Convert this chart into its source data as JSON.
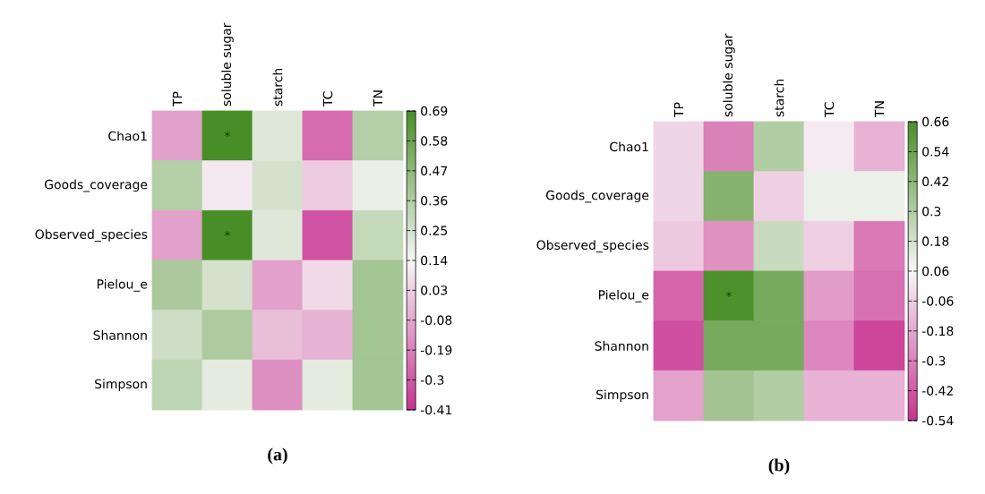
{
  "chart_data": [
    {
      "type": "heatmap",
      "title": "(a)",
      "categories": [
        "TP",
        "soluble sugar",
        "starch",
        "TC",
        "TN"
      ],
      "y_categories": [
        "Chao1",
        "Goods_coverage",
        "Observed_species",
        "Pielou_e",
        "Shannon",
        "Simpson"
      ],
      "cells": [
        [
          -0.1,
          0.69,
          0.22,
          -0.25,
          0.35
        ],
        [
          0.35,
          0.1,
          0.25,
          0.02,
          0.18
        ],
        [
          -0.1,
          0.69,
          0.22,
          -0.32,
          0.3
        ],
        [
          0.38,
          0.25,
          -0.1,
          0.06,
          0.4
        ],
        [
          0.27,
          0.37,
          -0.02,
          -0.05,
          0.4
        ],
        [
          0.32,
          0.2,
          -0.15,
          0.2,
          0.4
        ]
      ],
      "cell_labels": [
        [
          null,
          "*",
          null,
          null,
          null
        ],
        [
          null,
          null,
          null,
          null,
          null
        ],
        [
          null,
          "*",
          null,
          null,
          null
        ],
        [
          null,
          null,
          null,
          null,
          null
        ],
        [
          null,
          null,
          null,
          null,
          null
        ],
        [
          null,
          null,
          null,
          null,
          null
        ]
      ],
      "clim": [
        -0.41,
        0.69
      ],
      "cticks": [
        -0.41,
        -0.3,
        -0.19,
        -0.08,
        0.03,
        0.14,
        0.25,
        0.36,
        0.47,
        0.58,
        0.69
      ]
    },
    {
      "type": "heatmap",
      "title": "(b)",
      "categories": [
        "TP",
        "soluble sugar",
        "starch",
        "TC",
        "TN"
      ],
      "y_categories": [
        "Chao1",
        "Goods_coverage",
        "Observed_species",
        "Pielou_e",
        "Shannon",
        "Simpson"
      ],
      "cells": [
        [
          -0.04,
          -0.3,
          0.3,
          0.02,
          -0.15
        ],
        [
          -0.04,
          0.45,
          -0.06,
          0.1,
          0.1
        ],
        [
          -0.08,
          -0.25,
          0.22,
          -0.06,
          -0.32
        ],
        [
          -0.38,
          0.64,
          0.5,
          -0.22,
          -0.35
        ],
        [
          -0.45,
          0.5,
          0.5,
          -0.28,
          -0.48
        ],
        [
          -0.2,
          0.35,
          0.3,
          -0.15,
          -0.15
        ]
      ],
      "cell_labels": [
        [
          null,
          null,
          null,
          null,
          null
        ],
        [
          null,
          null,
          null,
          null,
          null
        ],
        [
          null,
          null,
          null,
          null,
          null
        ],
        [
          null,
          "*",
          null,
          null,
          null
        ],
        [
          null,
          null,
          null,
          null,
          null
        ],
        [
          null,
          null,
          null,
          null,
          null
        ]
      ],
      "clim": [
        -0.54,
        0.66
      ],
      "cticks": [
        -0.54,
        -0.42,
        -0.3,
        -0.18,
        -0.06,
        0.06,
        0.18,
        0.3,
        0.42,
        0.54,
        0.66
      ]
    }
  ]
}
